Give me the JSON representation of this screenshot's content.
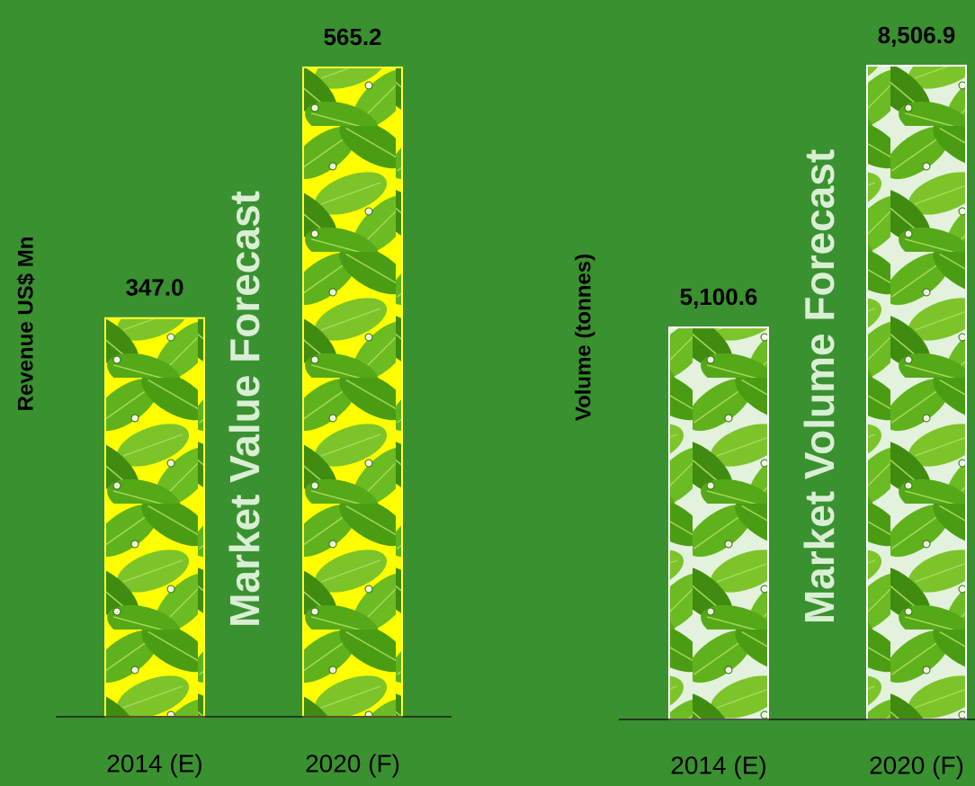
{
  "chart_data": [
    {
      "type": "bar",
      "title": "Market Value Forecast",
      "y_label": "Revenue US$ Mn",
      "categories": [
        "2014 (E)",
        "2020 (F)"
      ],
      "values": [
        347.0,
        565.2
      ],
      "value_labels": [
        "347.0",
        "565.2"
      ],
      "color": "#ffff00",
      "border_color": "#ffff33"
    },
    {
      "type": "bar",
      "title": "Market Volume Forecast",
      "y_label": "Volume (tonnes)",
      "categories": [
        "2014 (E)",
        "2020 (F)"
      ],
      "values": [
        5100.6,
        8506.9
      ],
      "value_labels": [
        "5,100.6",
        "8,506.9"
      ],
      "color": "#e3f2dc",
      "border_color": "#ffffff"
    }
  ]
}
